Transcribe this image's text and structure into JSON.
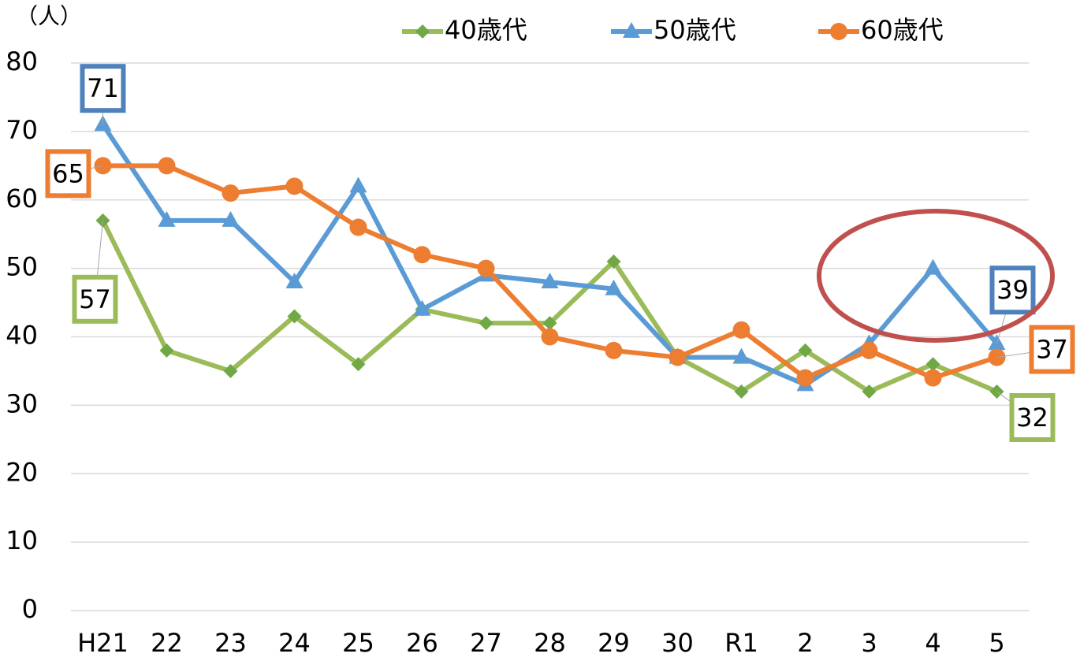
{
  "chart_data": {
    "type": "line",
    "y_axis_label": "（人）",
    "categories": [
      "H21",
      "22",
      "23",
      "24",
      "25",
      "26",
      "27",
      "28",
      "29",
      "30",
      "R1",
      "2",
      "3",
      "4",
      "5"
    ],
    "series": [
      {
        "name": "40歳代",
        "color": "#9BBB59",
        "marker": "diamond",
        "values": [
          57,
          38,
          35,
          43,
          36,
          44,
          42,
          42,
          51,
          37,
          32,
          38,
          32,
          36,
          32
        ]
      },
      {
        "name": "50歳代",
        "color": "#5B9BD5",
        "marker": "triangle",
        "values": [
          71,
          57,
          57,
          48,
          62,
          44,
          49,
          48,
          47,
          37,
          37,
          33,
          39,
          50,
          39
        ]
      },
      {
        "name": "60歳代",
        "color": "#ED7D31",
        "marker": "circle",
        "values": [
          65,
          65,
          61,
          62,
          56,
          52,
          50,
          40,
          38,
          37,
          41,
          34,
          38,
          34,
          37
        ]
      }
    ],
    "ylim": [
      0,
      80
    ],
    "yticks": [
      0,
      10,
      20,
      30,
      40,
      50,
      60,
      70,
      80
    ],
    "grid": true,
    "legend": "top"
  }
}
